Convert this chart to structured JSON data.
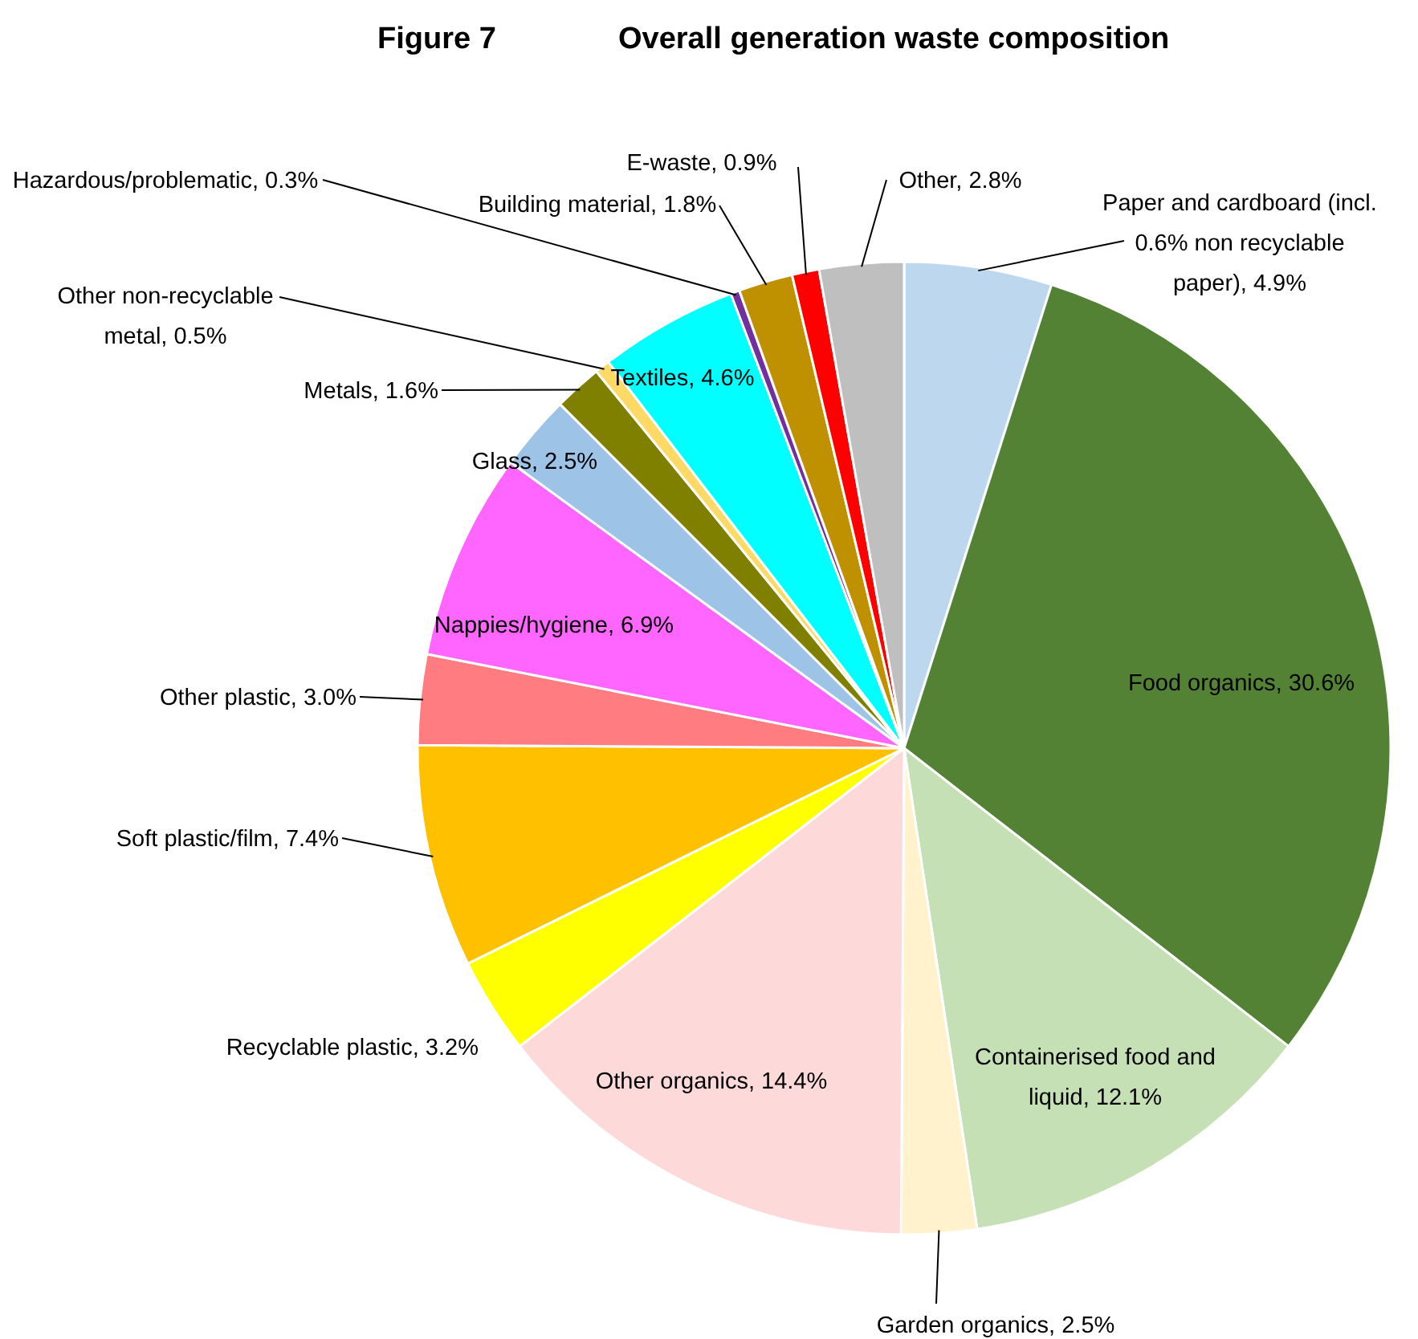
{
  "chart_data": {
    "type": "pie",
    "title": "Figure 7",
    "subtitle": "Overall generation waste composition",
    "categories": [
      "Paper and cardboard (incl. 0.6% non recyclable paper)",
      "Food organics",
      "Containerised food and liquid",
      "Garden organics",
      "Other organics",
      "Recyclable plastic",
      "Soft plastic/film",
      "Other plastic",
      "Nappies/hygiene",
      "Glass",
      "Metals",
      "Other non-recyclable metal",
      "Textiles",
      "Hazardous/problematic",
      "Building material",
      "E-waste",
      "Other"
    ],
    "values": [
      4.9,
      30.6,
      12.1,
      2.5,
      14.4,
      3.2,
      7.4,
      3.0,
      6.9,
      2.5,
      1.6,
      0.5,
      4.6,
      0.3,
      1.8,
      0.9,
      2.8
    ],
    "value_labels": [
      "4.9%",
      "30.6%",
      "12.1%",
      "2.5%",
      "14.4%",
      "3.2%",
      "7.4%",
      "3.0%",
      "6.9%",
      "2.5%",
      "1.6%",
      "0.5%",
      "4.6%",
      "0.3%",
      "1.8%",
      "0.9%",
      "2.8%"
    ],
    "colors": [
      "#bdd7ee",
      "#548235",
      "#c5e0b4",
      "#fff2cc",
      "#fdd9d9",
      "#ffff00",
      "#ffc000",
      "#ff7c80",
      "#ff66ff",
      "#9dc3e6",
      "#7f7f00",
      "#ffd966",
      "#00ffff",
      "#7030a0",
      "#bf9000",
      "#ff0000",
      "#bfbfbf"
    ],
    "data_labels": false
  }
}
